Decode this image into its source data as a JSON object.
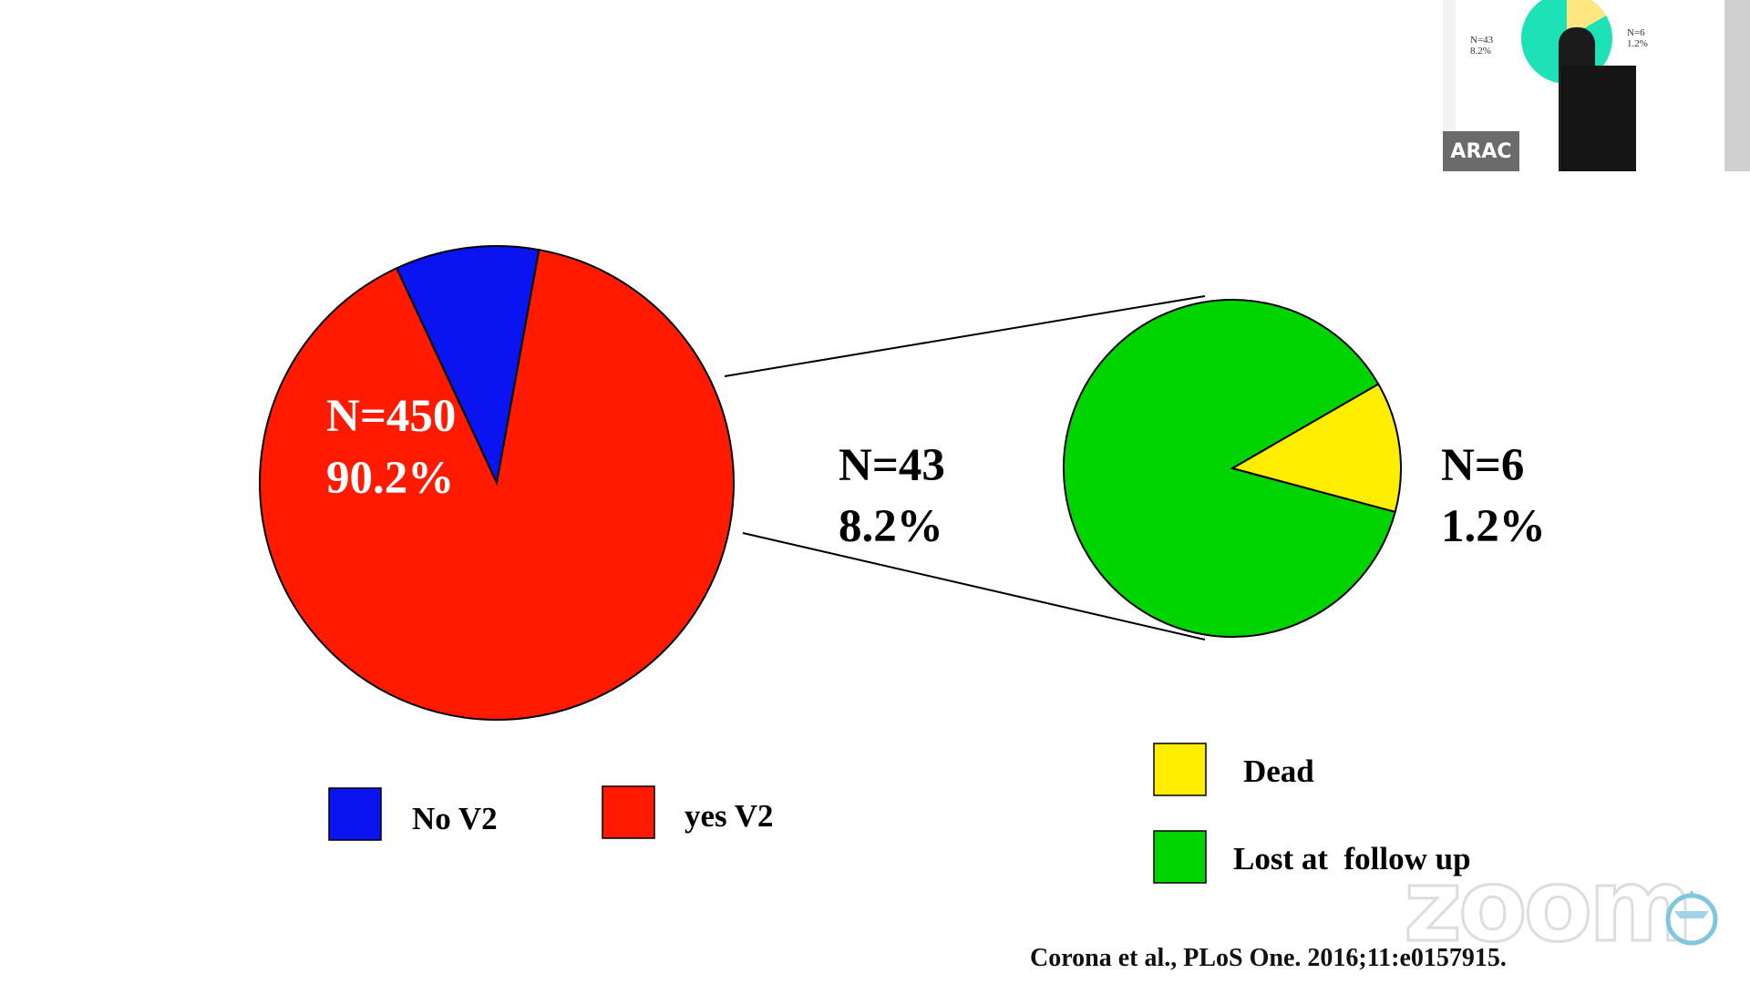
{
  "chart_data": [
    {
      "type": "pie",
      "slices": [
        {
          "label": "No V2",
          "value": 9.8,
          "color": "#0a14f0"
        },
        {
          "label": "yes V2",
          "value": 90.2,
          "color": "#ff1a00"
        }
      ],
      "annotations": [
        {
          "line1": "N=450",
          "line2": "90.2%"
        },
        {
          "line1": "N=43",
          "line2": "8.2%"
        }
      ],
      "legend": [
        {
          "label": "No V2",
          "color": "#0a14f0"
        },
        {
          "label": "yes V2",
          "color": "#ff1a00"
        }
      ],
      "legend_placement": "bottom"
    },
    {
      "type": "pie",
      "slices": [
        {
          "label": "Dead",
          "value": 12.5,
          "color": "#ffee00"
        },
        {
          "label": "Lost at  follow up",
          "value": 87.5,
          "color": "#00d400"
        }
      ],
      "annotations": [
        {
          "line1": "N=6",
          "line2": "1.2%"
        }
      ],
      "legend": [
        {
          "label": "Dead",
          "color": "#ffee00"
        },
        {
          "label": "Lost at  follow up",
          "color": "#00d400"
        }
      ],
      "legend_placement": "bottom-right"
    }
  ],
  "citation": "Corona et al., PLoS One. 2016;11:e0157915.",
  "video": {
    "participant_label": "ARAC",
    "thumb_text_left": "N=43\n8.2%",
    "thumb_text_right": "N=6\n1.2%"
  },
  "watermark": "zoom"
}
